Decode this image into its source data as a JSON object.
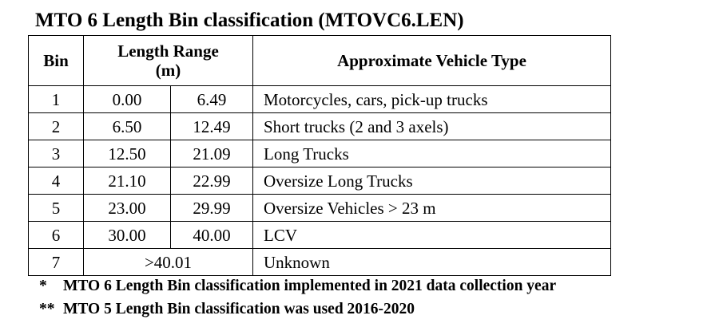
{
  "title": "MTO 6 Length Bin classification (MTOVC6.LEN)",
  "table": {
    "headers": {
      "bin": "Bin",
      "length_range_line1": "Length Range",
      "length_range_line2": "(m)",
      "vehicle_type": "Approximate Vehicle Type"
    },
    "rows": [
      {
        "bin": "1",
        "min": "0.00",
        "max": "6.49",
        "type": "Motorcycles, cars, pick-up trucks"
      },
      {
        "bin": "2",
        "min": "6.50",
        "max": "12.49",
        "type": "Short trucks (2 and 3 axels)"
      },
      {
        "bin": "3",
        "min": "12.50",
        "max": "21.09",
        "type": "Long Trucks"
      },
      {
        "bin": "4",
        "min": "21.10",
        "max": "22.99",
        "type": "Oversize Long Trucks"
      },
      {
        "bin": "5",
        "min": "23.00",
        "max": "29.99",
        "type": "Oversize Vehicles > 23 m"
      },
      {
        "bin": "6",
        "min": "30.00",
        "max": "40.00",
        "type": "LCV"
      },
      {
        "bin": "7",
        "range": ">40.01",
        "type": "Unknown"
      }
    ]
  },
  "notes": [
    {
      "marker": "*",
      "text": "MTO 6 Length Bin classification implemented in 2021 data collection year"
    },
    {
      "marker": "**",
      "text": "MTO 5 Length Bin classification was used 2016-2020"
    }
  ]
}
